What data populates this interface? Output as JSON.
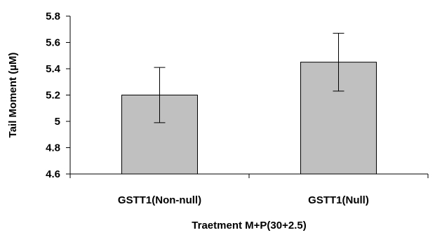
{
  "chart_data": {
    "type": "bar",
    "title": "",
    "xlabel": "Traetment M+P(30+2.5)",
    "ylabel": "Tail Moment (µM)",
    "categories": [
      "GSTT1(Non-null)",
      "GSTT1(Null)"
    ],
    "series": [
      {
        "values": [
          5.2,
          5.45
        ],
        "error_low": [
          4.99,
          5.23
        ],
        "error_high": [
          5.41,
          5.67
        ],
        "color": "#c0c0c0"
      }
    ],
    "ylim": [
      4.6,
      5.8
    ],
    "yticks": [
      4.6,
      4.8,
      5,
      5.2,
      5.4,
      5.6,
      5.8
    ],
    "ytick_labels": [
      "4.6",
      "4.8",
      "5",
      "5.2",
      "5.4",
      "5.6",
      "5.8"
    ],
    "grid": false,
    "legend": "none"
  }
}
